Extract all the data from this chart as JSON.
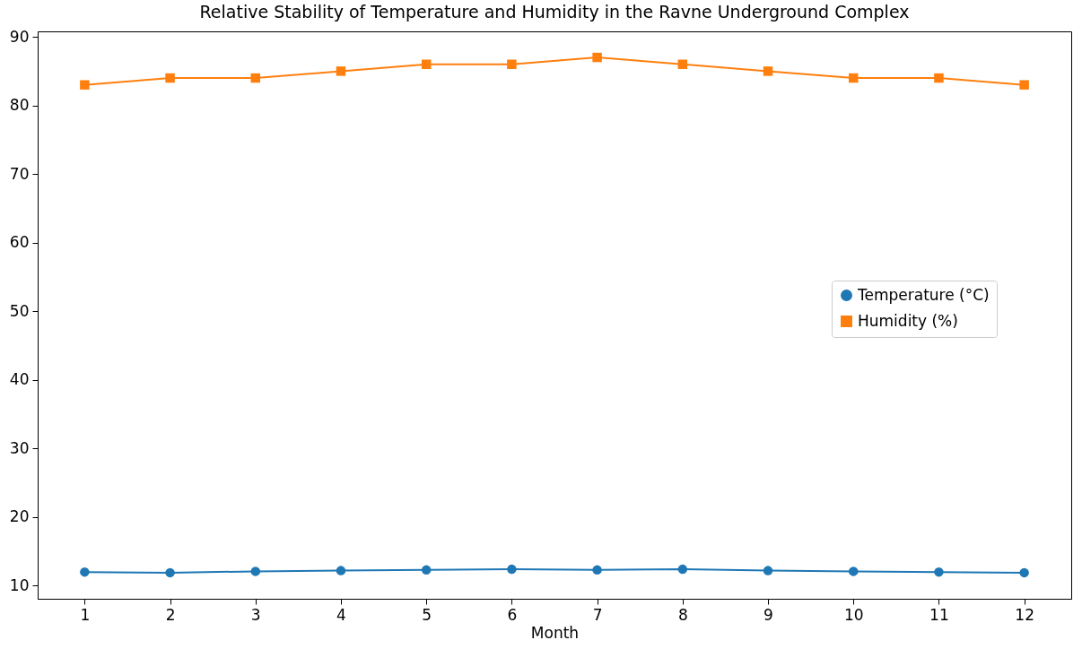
{
  "chart_data": {
    "type": "line",
    "title": "Relative Stability of Temperature and Humidity in the Ravne Underground Complex",
    "xlabel": "Month",
    "x": [
      1,
      2,
      3,
      4,
      5,
      6,
      7,
      8,
      9,
      10,
      11,
      12
    ],
    "xlim": [
      0.45,
      12.55
    ],
    "xticks": [
      1,
      2,
      3,
      4,
      5,
      6,
      7,
      8,
      9,
      10,
      11,
      12
    ],
    "ylim": [
      8.1,
      90.8
    ],
    "yticks": [
      10,
      20,
      30,
      40,
      50,
      60,
      70,
      80,
      90
    ],
    "series": [
      {
        "name": "Temperature (°C)",
        "color": "#1f77b4",
        "marker": "circle",
        "values": [
          12.0,
          11.9,
          12.1,
          12.2,
          12.3,
          12.4,
          12.3,
          12.4,
          12.2,
          12.1,
          12.0,
          11.9
        ]
      },
      {
        "name": "Humidity (%)",
        "color": "#ff7f0e",
        "marker": "square",
        "values": [
          83,
          84,
          84,
          85,
          86,
          86,
          87,
          86,
          85,
          84,
          84,
          83
        ]
      }
    ],
    "grid": false,
    "legend": "right",
    "line_style": "solid"
  }
}
